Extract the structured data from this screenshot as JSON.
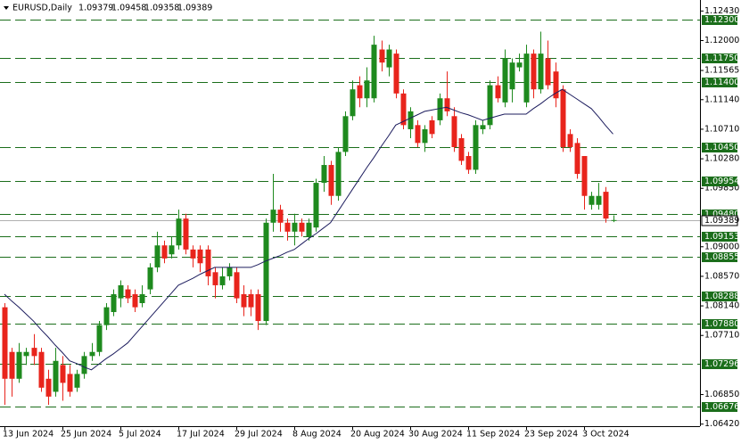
{
  "header": {
    "symbol": "EURUSD,Daily",
    "ohlc": [
      "1.09379",
      "1.09458",
      "1.09358",
      "1.09389"
    ]
  },
  "chart_data": {
    "type": "candlestick",
    "categories": [
      "13 Jun 2024",
      null,
      null,
      null,
      null,
      null,
      null,
      null,
      "25 Jun 2024",
      null,
      null,
      null,
      null,
      null,
      null,
      null,
      "5 Jul 2024",
      null,
      null,
      null,
      null,
      null,
      null,
      null,
      "17 Jul 2024",
      null,
      null,
      null,
      null,
      null,
      null,
      null,
      "29 Jul 2024",
      null,
      null,
      null,
      null,
      null,
      null,
      null,
      "8 Aug 2024",
      null,
      null,
      null,
      null,
      null,
      null,
      null,
      "20 Aug 2024",
      null,
      null,
      null,
      null,
      null,
      null,
      null,
      "30 Aug 2024",
      null,
      null,
      null,
      null,
      null,
      null,
      null,
      "11 Sep 2024",
      null,
      null,
      null,
      null,
      null,
      null,
      null,
      "23 Sep 2024",
      null,
      null,
      null,
      null,
      null,
      null,
      null,
      "3 Oct 2024",
      null,
      null,
      null,
      null
    ],
    "open": [
      1.0812,
      1.0747,
      1.0708,
      1.0741,
      1.0753,
      1.0747,
      1.0708,
      1.0689,
      1.0728,
      1.0715,
      1.0695,
      1.0715,
      1.0741,
      1.0747,
      1.0786,
      1.0805,
      1.0825,
      1.0838,
      1.0831,
      1.0818,
      1.0838,
      1.087,
      1.0902,
      1.0889,
      1.0902,
      1.0941,
      1.0896,
      1.0896,
      1.0896,
      1.0863,
      1.0844,
      1.0857,
      1.0863,
      1.0831,
      1.0831,
      1.0831,
      1.0792,
      1.0935,
      1.0954,
      1.0935,
      1.0922,
      1.0935,
      1.0915,
      1.0928,
      1.0993,
      1.1019,
      1.0974,
      1.1038,
      1.109,
      1.1135,
      1.1116,
      1.1116,
      1.1187,
      1.1161,
      1.1181,
      1.1123,
      1.1071,
      1.1077,
      1.1051,
      1.1084,
      1.1084,
      1.1116,
      1.109,
      1.1058,
      1.1032,
      1.1012,
      1.1071,
      1.1077,
      1.1135,
      1.111,
      1.1129,
      1.1161,
      1.111,
      1.1181,
      1.1129,
      1.1174,
      1.1155,
      1.1129,
      1.1064,
      1.1051,
      1.1032,
      1.0961,
      1.0961,
      1.098,
      1.09379
    ],
    "high": [
      1.0818,
      1.0753,
      1.076,
      1.0753,
      1.0773,
      1.0753,
      1.0721,
      1.0753,
      1.0741,
      1.0728,
      1.0721,
      1.0747,
      1.076,
      1.0792,
      1.0818,
      1.0838,
      1.0851,
      1.0844,
      1.0838,
      1.0844,
      1.0876,
      1.0922,
      1.0909,
      1.0915,
      1.0954,
      1.0948,
      1.0902,
      1.0902,
      1.0902,
      1.087,
      1.087,
      1.0876,
      1.087,
      1.0844,
      1.0838,
      1.0838,
      1.0941,
      1.1006,
      1.0961,
      1.0941,
      1.0948,
      1.0941,
      1.0941,
      1.0999,
      1.1032,
      1.1025,
      1.1045,
      1.1097,
      1.1142,
      1.1148,
      1.1161,
      1.1207,
      1.12,
      1.1194,
      1.1187,
      1.1129,
      1.1103,
      1.1084,
      1.1077,
      1.109,
      1.1123,
      1.1155,
      1.1103,
      1.1064,
      1.1038,
      1.1084,
      1.1084,
      1.1142,
      1.1148,
      1.1187,
      1.1174,
      1.1181,
      1.1194,
      1.1187,
      1.1213,
      1.12,
      1.1168,
      1.1135,
      1.1071,
      1.1058,
      1.1032,
      1.098,
      1.0993,
      1.0987,
      1.09458
    ],
    "low": [
      1.067,
      1.0682,
      1.0702,
      1.0728,
      1.0728,
      1.0689,
      1.067,
      1.0682,
      1.0676,
      1.0682,
      1.0689,
      1.0708,
      1.0734,
      1.0741,
      1.0779,
      1.0799,
      1.0812,
      1.0818,
      1.0805,
      1.0812,
      1.0831,
      1.0863,
      1.0876,
      1.0883,
      1.0896,
      1.0889,
      1.087,
      1.0863,
      1.0844,
      1.0825,
      1.0838,
      1.0851,
      1.0818,
      1.0799,
      1.0799,
      1.0779,
      1.0786,
      1.0922,
      1.0922,
      1.0909,
      1.0902,
      1.0915,
      1.0909,
      1.0922,
      1.098,
      1.0961,
      1.0967,
      1.1032,
      1.1084,
      1.1103,
      1.1103,
      1.111,
      1.1155,
      1.1148,
      1.1116,
      1.1071,
      1.1058,
      1.1045,
      1.1038,
      1.1058,
      1.1077,
      1.109,
      1.1038,
      1.1019,
      1.1006,
      1.1006,
      1.1064,
      1.1071,
      1.111,
      1.1103,
      1.111,
      1.1155,
      1.1103,
      1.1116,
      1.1123,
      1.1129,
      1.1103,
      1.1038,
      1.1038,
      1.0999,
      1.0954,
      1.0954,
      1.0954,
      1.0935,
      1.09358
    ],
    "close": [
      1.0708,
      1.0708,
      1.0747,
      1.0747,
      1.0741,
      1.0695,
      1.0682,
      1.0734,
      1.0702,
      1.0689,
      1.0715,
      1.0741,
      1.0747,
      1.0786,
      1.0812,
      1.0831,
      1.0844,
      1.0825,
      1.0812,
      1.0831,
      1.087,
      1.0902,
      1.0883,
      1.0902,
      1.0941,
      1.0896,
      1.0883,
      1.0876,
      1.0857,
      1.0844,
      1.0857,
      1.087,
      1.0825,
      1.0812,
      1.0812,
      1.0792,
      1.0935,
      1.0954,
      1.0935,
      1.0922,
      1.0935,
      1.0922,
      1.0935,
      1.0993,
      1.1019,
      1.0974,
      1.1038,
      1.109,
      1.1129,
      1.1116,
      1.1142,
      1.1194,
      1.1168,
      1.1187,
      1.1123,
      1.1077,
      1.1097,
      1.1051,
      1.1071,
      1.1064,
      1.1116,
      1.1097,
      1.1045,
      1.1025,
      1.1012,
      1.1077,
      1.1077,
      1.1135,
      1.1116,
      1.1174,
      1.1168,
      1.1168,
      1.1181,
      1.1129,
      1.1181,
      1.1135,
      1.1116,
      1.1045,
      1.1045,
      1.1006,
      1.0974,
      1.0974,
      1.0974,
      1.0941,
      1.09389
    ],
    "up_color": "#1e8a1e",
    "down_color": "#e8241c",
    "moving_average": {
      "color": "#1c1c5e",
      "values": [
        1.0831,
        1.0821,
        1.0812,
        1.0802,
        1.0792,
        1.078,
        1.0769,
        1.0757,
        1.0746,
        1.0734,
        1.073,
        1.0725,
        1.0721,
        1.0729,
        1.0737,
        1.0744,
        1.0752,
        1.076,
        1.0772,
        1.0784,
        1.0796,
        1.0808,
        1.082,
        1.0832,
        1.0844,
        1.0849,
        1.0854,
        1.086,
        1.0865,
        1.087,
        1.087,
        1.087,
        1.087,
        1.087,
        1.087,
        1.0874,
        1.0879,
        1.0883,
        1.0887,
        1.0892,
        1.0896,
        1.0904,
        1.0912,
        1.0919,
        1.0927,
        1.0935,
        1.0951,
        1.0967,
        1.0983,
        1.0999,
        1.1015,
        1.103,
        1.1046,
        1.1061,
        1.1077,
        1.1082,
        1.1087,
        1.1092,
        1.1097,
        1.1099,
        1.1101,
        1.1103,
        1.1099,
        1.1095,
        1.1092,
        1.1088,
        1.1084,
        1.1087,
        1.109,
        1.1093,
        1.1093,
        1.1093,
        1.1093,
        1.1101,
        1.1108,
        1.1116,
        1.1123,
        1.1129,
        1.1122,
        1.1115,
        1.1108,
        1.1101,
        1.1089,
        1.1076,
        1.1064
      ]
    },
    "levels": {
      "color": "#1b6e1b",
      "values": [
        {
          "value": 1.123,
          "label": "1.12300"
        },
        {
          "value": 1.1175,
          "label": "1.11750"
        },
        {
          "value": 1.114,
          "label": "1.11400"
        },
        {
          "value": 1.1045,
          "label": "1.10450"
        },
        {
          "value": 1.09954,
          "label": "1.09954"
        },
        {
          "value": 1.0948,
          "label": "1.09480"
        },
        {
          "value": 1.09153,
          "label": "1.09153"
        },
        {
          "value": 1.08855,
          "label": "1.08855"
        },
        {
          "value": 1.08288,
          "label": "1.08288"
        },
        {
          "value": 1.0788,
          "label": "1.07880"
        },
        {
          "value": 1.07296,
          "label": "1.07296"
        },
        {
          "value": 1.06676,
          "label": "1.06676"
        }
      ]
    },
    "current_price": {
      "value": 1.09389,
      "label": "1.09389"
    },
    "ylim": [
      1.0639,
      1.1259
    ],
    "yticks": [
      {
        "value": 1.1243,
        "label": "1.12430"
      },
      {
        "value": 1.12,
        "label": "1.12000"
      },
      {
        "value": 1.11565,
        "label": "1.11565"
      },
      {
        "value": 1.1114,
        "label": "1.11140"
      },
      {
        "value": 1.1071,
        "label": "1.10710"
      },
      {
        "value": 1.1028,
        "label": "1.10280"
      },
      {
        "value": 1.0985,
        "label": "1.09850"
      },
      {
        "value": 1.09,
        "label": "1.09000"
      },
      {
        "value": 1.0857,
        "label": "1.08570"
      },
      {
        "value": 1.0814,
        "label": "1.08140"
      },
      {
        "value": 1.0771,
        "label": "1.07710"
      },
      {
        "value": 1.0685,
        "label": "1.06850"
      },
      {
        "value": 1.0642,
        "label": "1.06420"
      }
    ]
  }
}
